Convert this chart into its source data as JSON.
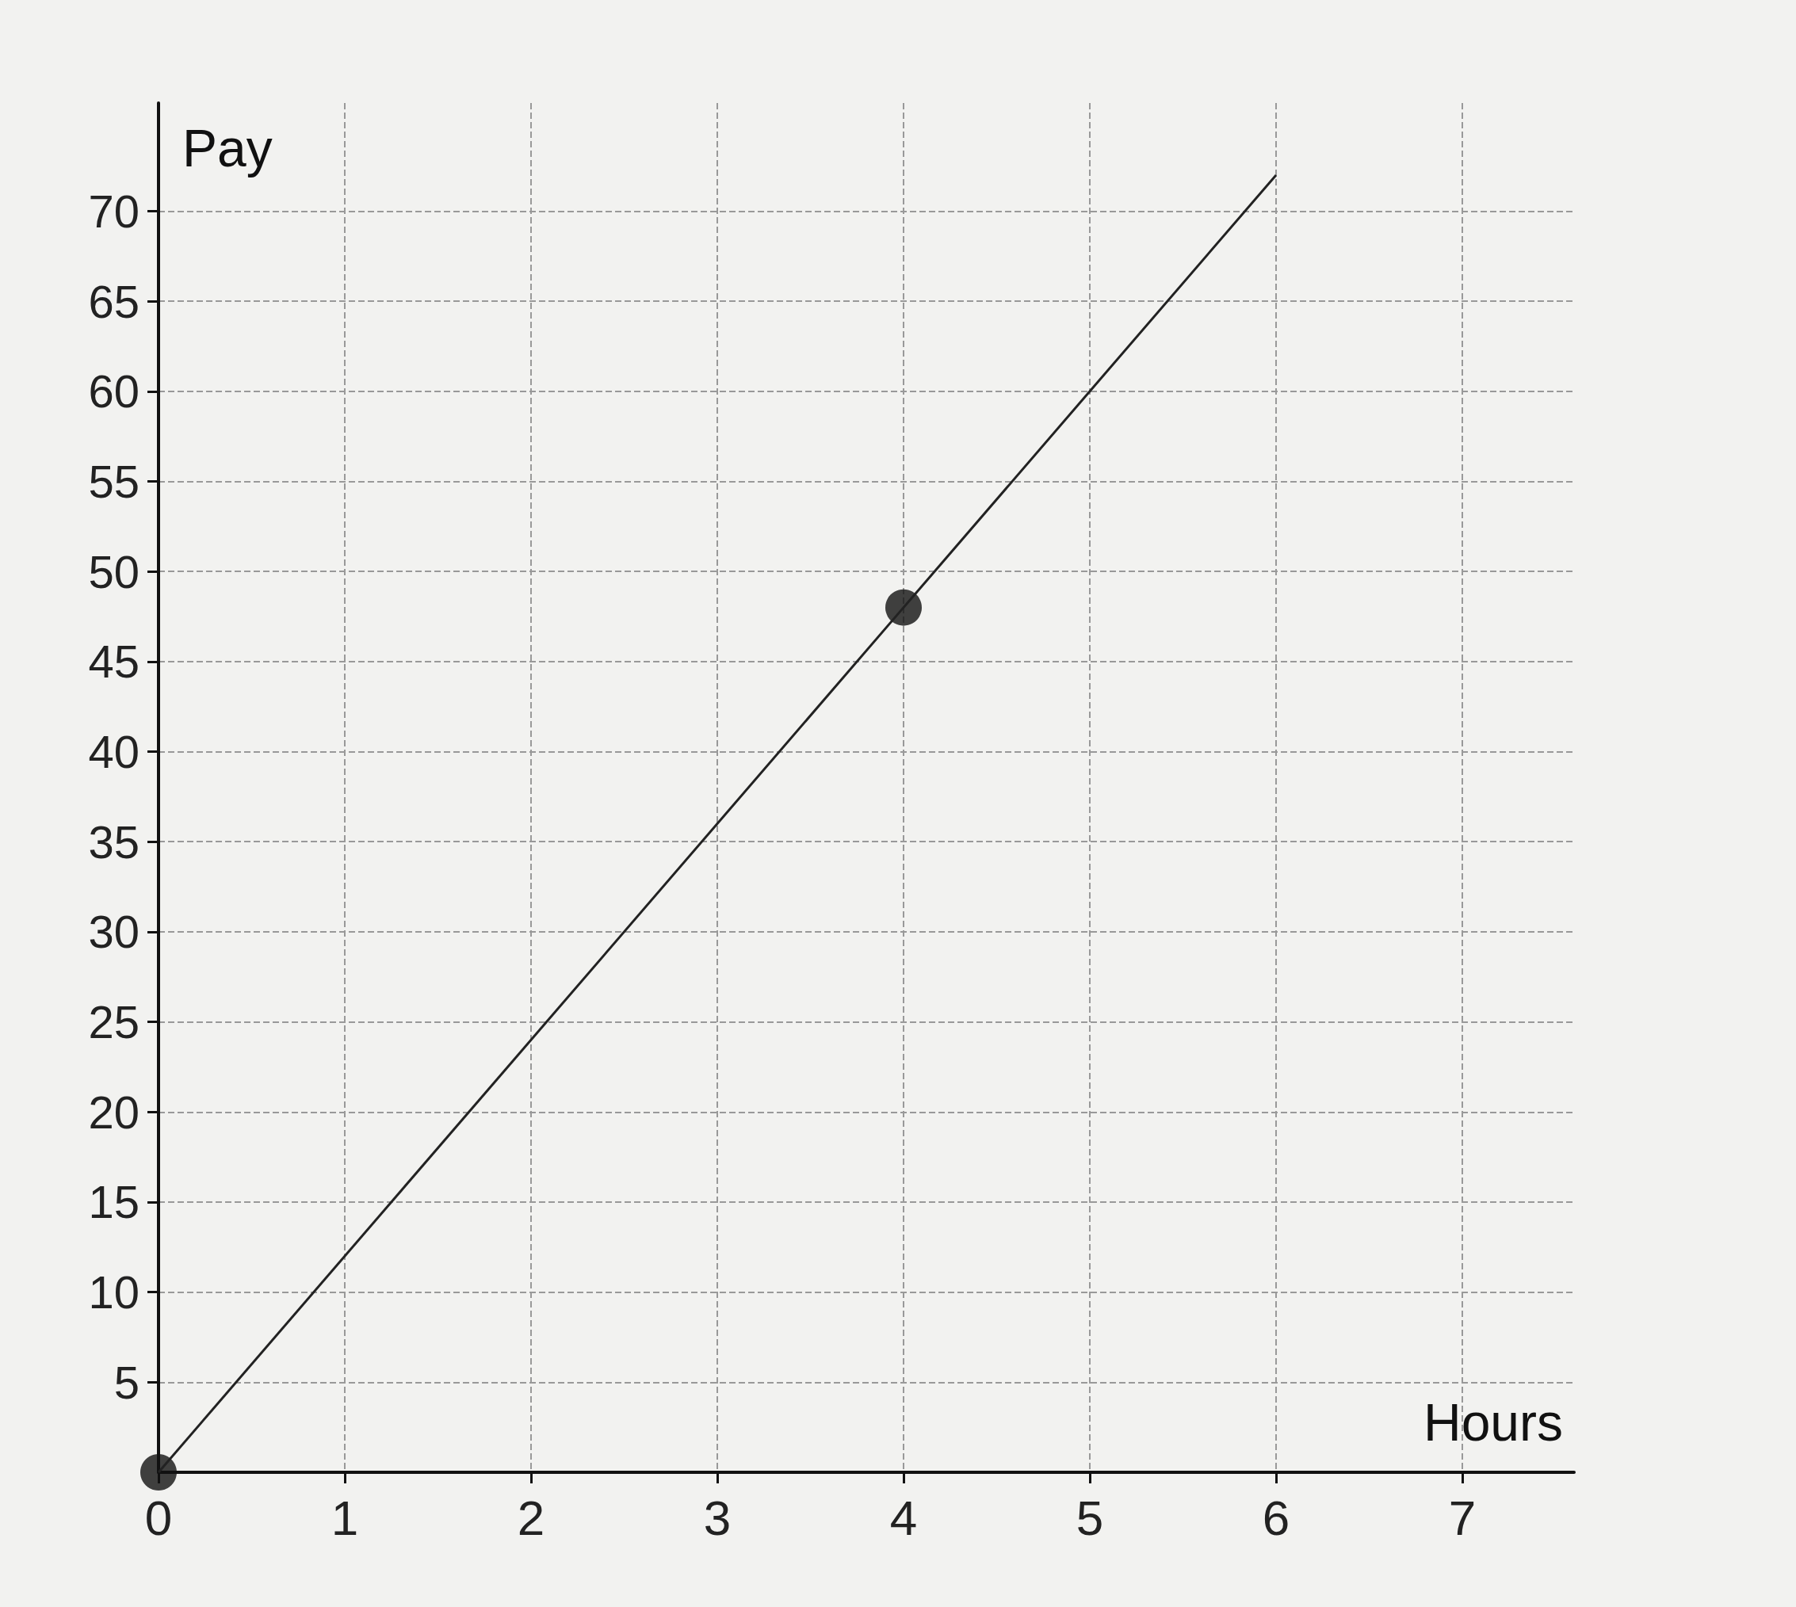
{
  "chart_data": {
    "type": "line",
    "xlabel": "Hours",
    "ylabel": "Pay",
    "xlim": [
      0,
      7.6
    ],
    "ylim": [
      0,
      76
    ],
    "xticks": [
      0,
      1,
      2,
      3,
      4,
      5,
      6,
      7
    ],
    "yticks": [
      5,
      10,
      15,
      20,
      25,
      30,
      35,
      40,
      45,
      50,
      55,
      60,
      65,
      70
    ],
    "grid": true,
    "series": [
      {
        "color": "#222222",
        "marker": "none",
        "x": [
          0,
          4,
          6
        ],
        "values": [
          0,
          48,
          72
        ]
      },
      {
        "type": "scatter",
        "color": "#111111",
        "marker": "circle",
        "x": [
          0,
          4
        ],
        "values": [
          0,
          48
        ]
      }
    ]
  }
}
